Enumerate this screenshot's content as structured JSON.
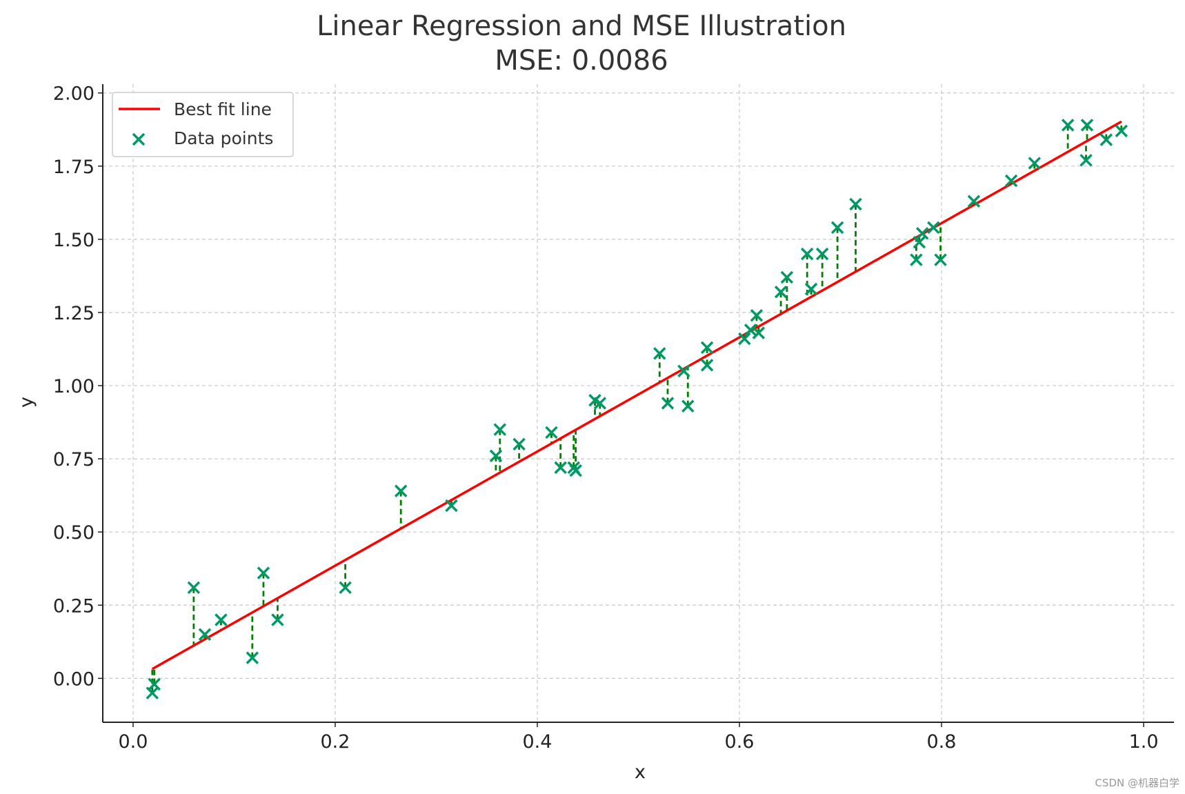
{
  "chart_data": {
    "type": "scatter",
    "title": "Linear Regression and MSE Illustration",
    "subtitle": "MSE: 0.0086",
    "xlabel": "x",
    "ylabel": "y",
    "xlim": [
      -0.03,
      1.03
    ],
    "ylim": [
      -0.15,
      2.03
    ],
    "xticks": [
      0.0,
      0.2,
      0.4,
      0.6,
      0.8,
      1.0
    ],
    "xtick_labels": [
      "0.0",
      "0.2",
      "0.4",
      "0.6",
      "0.8",
      "1.0"
    ],
    "yticks": [
      0.0,
      0.25,
      0.5,
      0.75,
      1.0,
      1.25,
      1.5,
      1.75,
      2.0
    ],
    "ytick_labels": [
      "0.00",
      "0.25",
      "0.50",
      "0.75",
      "1.00",
      "1.25",
      "1.50",
      "1.75",
      "2.00"
    ],
    "grid": true,
    "legend_position": "top-left",
    "line": {
      "name": "Best fit line",
      "slope": 1.95,
      "intercept": -0.005,
      "x_range": [
        0.019,
        0.978
      ],
      "color": "#ff0000"
    },
    "series": [
      {
        "name": "Data points",
        "marker": "x",
        "color": "#009966",
        "points": [
          {
            "x": 0.019,
            "y": -0.05
          },
          {
            "x": 0.021,
            "y": -0.02
          },
          {
            "x": 0.06,
            "y": 0.31
          },
          {
            "x": 0.071,
            "y": 0.15
          },
          {
            "x": 0.087,
            "y": 0.2
          },
          {
            "x": 0.118,
            "y": 0.07
          },
          {
            "x": 0.129,
            "y": 0.36
          },
          {
            "x": 0.143,
            "y": 0.2
          },
          {
            "x": 0.21,
            "y": 0.31
          },
          {
            "x": 0.265,
            "y": 0.64
          },
          {
            "x": 0.315,
            "y": 0.59
          },
          {
            "x": 0.359,
            "y": 0.76
          },
          {
            "x": 0.363,
            "y": 0.85
          },
          {
            "x": 0.382,
            "y": 0.8
          },
          {
            "x": 0.414,
            "y": 0.84
          },
          {
            "x": 0.423,
            "y": 0.72
          },
          {
            "x": 0.436,
            "y": 0.72
          },
          {
            "x": 0.438,
            "y": 0.71
          },
          {
            "x": 0.457,
            "y": 0.95
          },
          {
            "x": 0.462,
            "y": 0.94
          },
          {
            "x": 0.521,
            "y": 1.11
          },
          {
            "x": 0.529,
            "y": 0.94
          },
          {
            "x": 0.545,
            "y": 1.05
          },
          {
            "x": 0.549,
            "y": 0.93
          },
          {
            "x": 0.568,
            "y": 1.07
          },
          {
            "x": 0.568,
            "y": 1.13
          },
          {
            "x": 0.605,
            "y": 1.16
          },
          {
            "x": 0.611,
            "y": 1.19
          },
          {
            "x": 0.617,
            "y": 1.24
          },
          {
            "x": 0.619,
            "y": 1.18
          },
          {
            "x": 0.641,
            "y": 1.32
          },
          {
            "x": 0.647,
            "y": 1.37
          },
          {
            "x": 0.667,
            "y": 1.45
          },
          {
            "x": 0.671,
            "y": 1.33
          },
          {
            "x": 0.682,
            "y": 1.45
          },
          {
            "x": 0.697,
            "y": 1.54
          },
          {
            "x": 0.715,
            "y": 1.62
          },
          {
            "x": 0.775,
            "y": 1.43
          },
          {
            "x": 0.778,
            "y": 1.49
          },
          {
            "x": 0.781,
            "y": 1.52
          },
          {
            "x": 0.792,
            "y": 1.54
          },
          {
            "x": 0.799,
            "y": 1.43
          },
          {
            "x": 0.832,
            "y": 1.63
          },
          {
            "x": 0.869,
            "y": 1.7
          },
          {
            "x": 0.892,
            "y": 1.76
          },
          {
            "x": 0.925,
            "y": 1.89
          },
          {
            "x": 0.943,
            "y": 1.77
          },
          {
            "x": 0.944,
            "y": 1.89
          },
          {
            "x": 0.963,
            "y": 1.84
          },
          {
            "x": 0.978,
            "y": 1.87
          }
        ]
      }
    ],
    "residual_color": "#008000"
  },
  "watermark": "CSDN @机器白学"
}
